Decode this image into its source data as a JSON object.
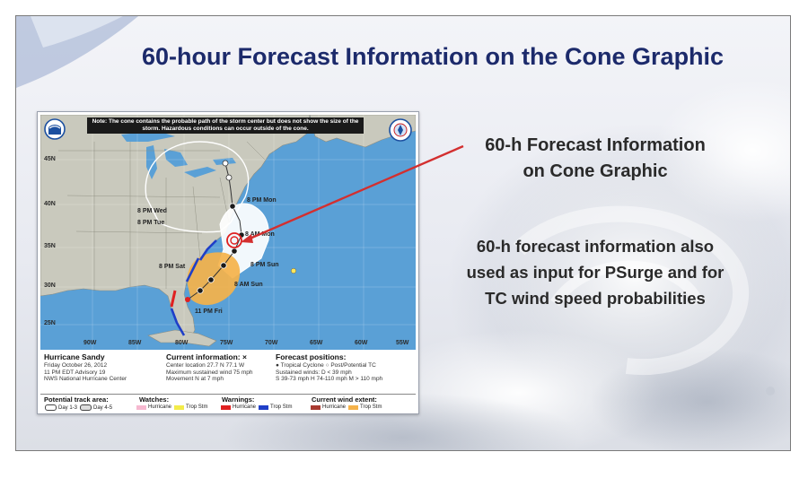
{
  "slide": {
    "title": "60-hour Forecast Information on the Cone Graphic",
    "callout_title_line1": "60-h Forecast Information",
    "callout_title_line2": "on Cone Graphic",
    "callout_body_line1": "60-h forecast information also",
    "callout_body_line2": "used as input for PSurge and for",
    "callout_body_line3": "TC wind speed probabilities"
  },
  "map": {
    "note": "Note: The cone contains the probable path of the storm center but does not show the size of the storm. Hazardous conditions can occur outside of the cone.",
    "lat_labels": [
      "45N",
      "40N",
      "35N",
      "30N",
      "25N"
    ],
    "lon_labels": [
      "90W",
      "85W",
      "80W",
      "75W",
      "70W",
      "65W",
      "60W",
      "55W"
    ],
    "forecast_points": [
      "8 PM Mon",
      "8 PM Wed",
      "8 PM Tue",
      "8 AM Mon",
      "8 PM Sun",
      "8 PM Sat",
      "8 AM Sun",
      "11 PM Fri"
    ],
    "colors": {
      "ocean": "#5aa0d6",
      "land": "#c9c9bd",
      "cone_white": "#ffffff",
      "cone_orange": "#f5b24a",
      "warning_red": "#e02020",
      "trop_storm_warning_blue": "#1f3fc8",
      "arrow_red": "#d32f2f",
      "title_navy": "#1c2a6b"
    }
  },
  "info": {
    "storm_name": "Hurricane Sandy",
    "date": "Friday October 26, 2012",
    "advisory": "11 PM EDT Advisory 19",
    "center": "NWS National Hurricane Center",
    "current_head": "Current information: ×",
    "current_lines": [
      "Center location 27.7 N 77.1 W",
      "Maximum sustained wind 75 mph",
      "Movement N at 7 mph"
    ],
    "forecast_head": "Forecast positions:",
    "forecast_lines": [
      "● Tropical Cyclone  ○ Post/Potential TC",
      "Sustained winds:     D < 39 mph",
      "S 39-73 mph  H 74-110 mph  M > 110 mph"
    ]
  },
  "legend": {
    "track_head": "Potential track area:",
    "day13": "Day 1-3",
    "day45": "Day 4-5",
    "watches_head": "Watches:",
    "warnings_head": "Warnings:",
    "wind_head": "Current wind extent:",
    "hurricane": "Hurricane",
    "trop_stm": "Trop Stm"
  }
}
